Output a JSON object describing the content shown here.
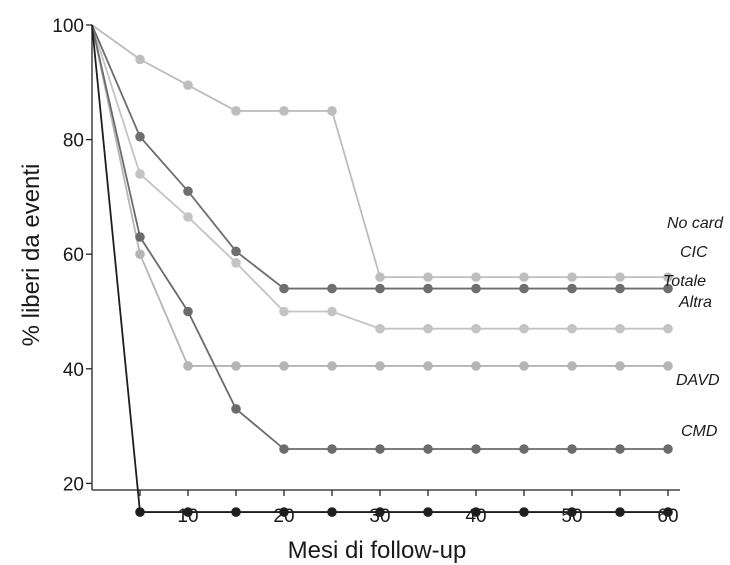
{
  "chart_data": {
    "type": "line",
    "title": "",
    "xlabel": "Mesi di follow-up",
    "ylabel": "% liberi da eventi",
    "xlim": [
      0,
      65
    ],
    "ylim": [
      0,
      100
    ],
    "x_ticks": [
      10,
      20,
      30,
      40,
      50,
      60
    ],
    "y_ticks": [
      20,
      40,
      60,
      80,
      100
    ],
    "grid": false,
    "legend": "inline labels at right end of each line",
    "series": [
      {
        "name": "No card",
        "color": "#bdbdbd",
        "points": [
          [
            0,
            100
          ],
          [
            5,
            94
          ],
          [
            10,
            89.5
          ],
          [
            15,
            85
          ],
          [
            20,
            85
          ],
          [
            25,
            85
          ],
          [
            30,
            56
          ],
          [
            35,
            56
          ],
          [
            40,
            56
          ],
          [
            45,
            56
          ],
          [
            50,
            56
          ],
          [
            55,
            56
          ],
          [
            60,
            56
          ]
        ]
      },
      {
        "name": "CIC",
        "color": "#6e6e6e",
        "points": [
          [
            0,
            100
          ],
          [
            5,
            80.5
          ],
          [
            10,
            71
          ],
          [
            15,
            60.5
          ],
          [
            20,
            54
          ],
          [
            25,
            54
          ],
          [
            30,
            54
          ],
          [
            35,
            54
          ],
          [
            40,
            54
          ],
          [
            45,
            54
          ],
          [
            50,
            54
          ],
          [
            55,
            54
          ],
          [
            60,
            54
          ]
        ]
      },
      {
        "name": "Totale",
        "color": "#c4c4c4",
        "points": [
          [
            0,
            100
          ],
          [
            5,
            74
          ],
          [
            10,
            66.5
          ],
          [
            15,
            58.5
          ],
          [
            20,
            50
          ],
          [
            25,
            50
          ],
          [
            30,
            47
          ],
          [
            35,
            47
          ],
          [
            40,
            47
          ],
          [
            45,
            47
          ],
          [
            50,
            47
          ],
          [
            55,
            47
          ],
          [
            60,
            47
          ]
        ]
      },
      {
        "name": "Altra",
        "color": "#b5b5b5",
        "points": [
          [
            0,
            100
          ],
          [
            5,
            60
          ],
          [
            10,
            40.5
          ],
          [
            15,
            40.5
          ],
          [
            20,
            40.5
          ],
          [
            25,
            40.5
          ],
          [
            30,
            40.5
          ],
          [
            35,
            40.5
          ],
          [
            40,
            40.5
          ],
          [
            45,
            40.5
          ],
          [
            50,
            40.5
          ],
          [
            55,
            40.5
          ],
          [
            60,
            40.5
          ]
        ]
      },
      {
        "name": "DAVD",
        "color": "#6b6b6b",
        "points": [
          [
            0,
            100
          ],
          [
            5,
            63
          ],
          [
            10,
            50
          ],
          [
            15,
            33
          ],
          [
            20,
            26
          ],
          [
            25,
            26
          ],
          [
            30,
            26
          ],
          [
            35,
            26
          ],
          [
            40,
            26
          ],
          [
            45,
            26
          ],
          [
            50,
            26
          ],
          [
            55,
            26
          ],
          [
            60,
            26
          ]
        ]
      },
      {
        "name": "CMD",
        "color": "#1e1e1e",
        "points": [
          [
            0,
            100
          ],
          [
            5,
            15
          ],
          [
            10,
            15
          ],
          [
            15,
            15
          ],
          [
            20,
            15
          ],
          [
            25,
            15
          ],
          [
            30,
            15
          ],
          [
            35,
            15
          ],
          [
            40,
            15
          ],
          [
            45,
            15
          ],
          [
            50,
            15
          ],
          [
            55,
            15
          ],
          [
            60,
            15
          ]
        ]
      }
    ]
  }
}
